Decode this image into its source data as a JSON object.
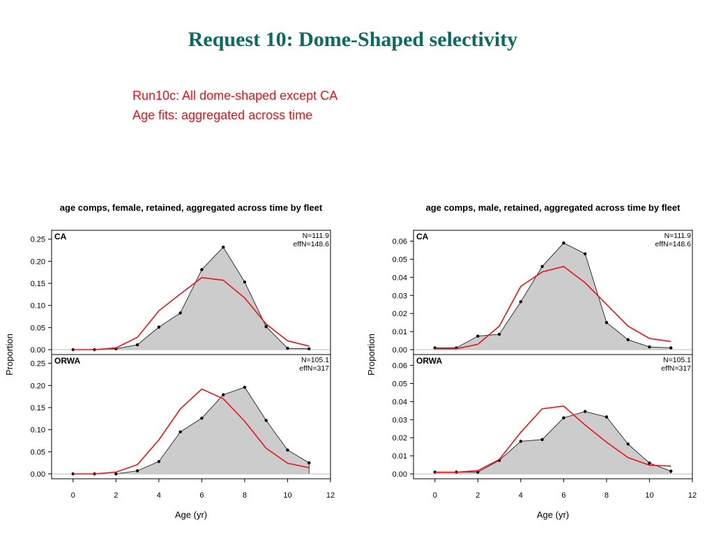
{
  "slide": {
    "title": "Request 10: Dome-Shaped selectivity",
    "subtitle_line1": "Run10c: All dome-shaped except CA",
    "subtitle_line2": "Age fits: aggregated across time"
  },
  "colors": {
    "observed_fill": "#cccccc",
    "observed_line": "#333333",
    "expected_line": "#e8141a",
    "title": "#0a6b5e"
  },
  "chart_data": [
    {
      "type": "area",
      "title": "age comps, female, retained, aggregated across time by fleet",
      "xlabel": "Age (yr)",
      "ylabel": "Proportion",
      "xlim": [
        -1,
        12
      ],
      "xticks": [
        0,
        2,
        4,
        6,
        8,
        10,
        12
      ],
      "ylim": [
        0,
        0.27
      ],
      "yticks": [
        "0.00",
        "0.05",
        "0.10",
        "0.15",
        "0.20",
        "0.25"
      ],
      "panels": [
        {
          "name": "CA",
          "n_label": "N=111.9",
          "effn_label": "effN=148.6",
          "x": [
            0,
            1,
            2,
            3,
            4,
            5,
            6,
            7,
            8,
            9,
            10,
            11
          ],
          "observed": [
            0.0,
            0.0,
            0.002,
            0.011,
            0.051,
            0.083,
            0.181,
            0.232,
            0.153,
            0.052,
            0.003,
            0.002
          ],
          "expected": [
            0.0,
            0.0,
            0.004,
            0.028,
            0.088,
            0.126,
            0.163,
            0.157,
            0.117,
            0.058,
            0.02,
            0.008
          ]
        },
        {
          "name": "ORWA",
          "n_label": "N=105.1",
          "effn_label": "effN=317",
          "x": [
            0,
            1,
            2,
            3,
            4,
            5,
            6,
            7,
            8,
            9,
            10,
            11
          ],
          "observed": [
            0.0,
            0.0,
            0.0,
            0.007,
            0.028,
            0.095,
            0.126,
            0.179,
            0.196,
            0.121,
            0.054,
            0.025
          ],
          "expected": [
            0.0,
            0.0,
            0.004,
            0.021,
            0.077,
            0.147,
            0.192,
            0.17,
            0.119,
            0.058,
            0.024,
            0.014
          ]
        }
      ]
    },
    {
      "type": "area",
      "title": "age comps, male, retained, aggregated across time by fleet",
      "xlabel": "Age (yr)",
      "ylabel": "Proportion",
      "xlim": [
        -1,
        12
      ],
      "xticks": [
        0,
        2,
        4,
        6,
        8,
        10,
        12
      ],
      "ylim": [
        0,
        0.066
      ],
      "yticks": [
        "0.00",
        "0.01",
        "0.02",
        "0.03",
        "0.04",
        "0.05",
        "0.06"
      ],
      "panels": [
        {
          "name": "CA",
          "n_label": "N=111.9",
          "effn_label": "effN=148.6",
          "x": [
            0,
            1,
            2,
            3,
            4,
            5,
            6,
            7,
            8,
            9,
            10,
            11
          ],
          "observed": [
            0.001,
            0.001,
            0.0075,
            0.0085,
            0.0265,
            0.046,
            0.059,
            0.053,
            0.015,
            0.0055,
            0.0015,
            0.001
          ],
          "expected": [
            0.0005,
            0.0005,
            0.003,
            0.013,
            0.035,
            0.043,
            0.046,
            0.037,
            0.025,
            0.013,
            0.0062,
            0.0045
          ]
        },
        {
          "name": "ORWA",
          "n_label": "N=105.1",
          "effn_label": "effN=317",
          "x": [
            0,
            1,
            2,
            3,
            4,
            5,
            6,
            7,
            8,
            9,
            10,
            11
          ],
          "observed": [
            0.001,
            0.001,
            0.001,
            0.0075,
            0.018,
            0.019,
            0.031,
            0.0345,
            0.0315,
            0.0165,
            0.006,
            0.0015
          ],
          "expected": [
            0.0009,
            0.0009,
            0.0018,
            0.008,
            0.023,
            0.036,
            0.0375,
            0.027,
            0.0175,
            0.009,
            0.0048,
            0.0043
          ]
        }
      ]
    }
  ]
}
